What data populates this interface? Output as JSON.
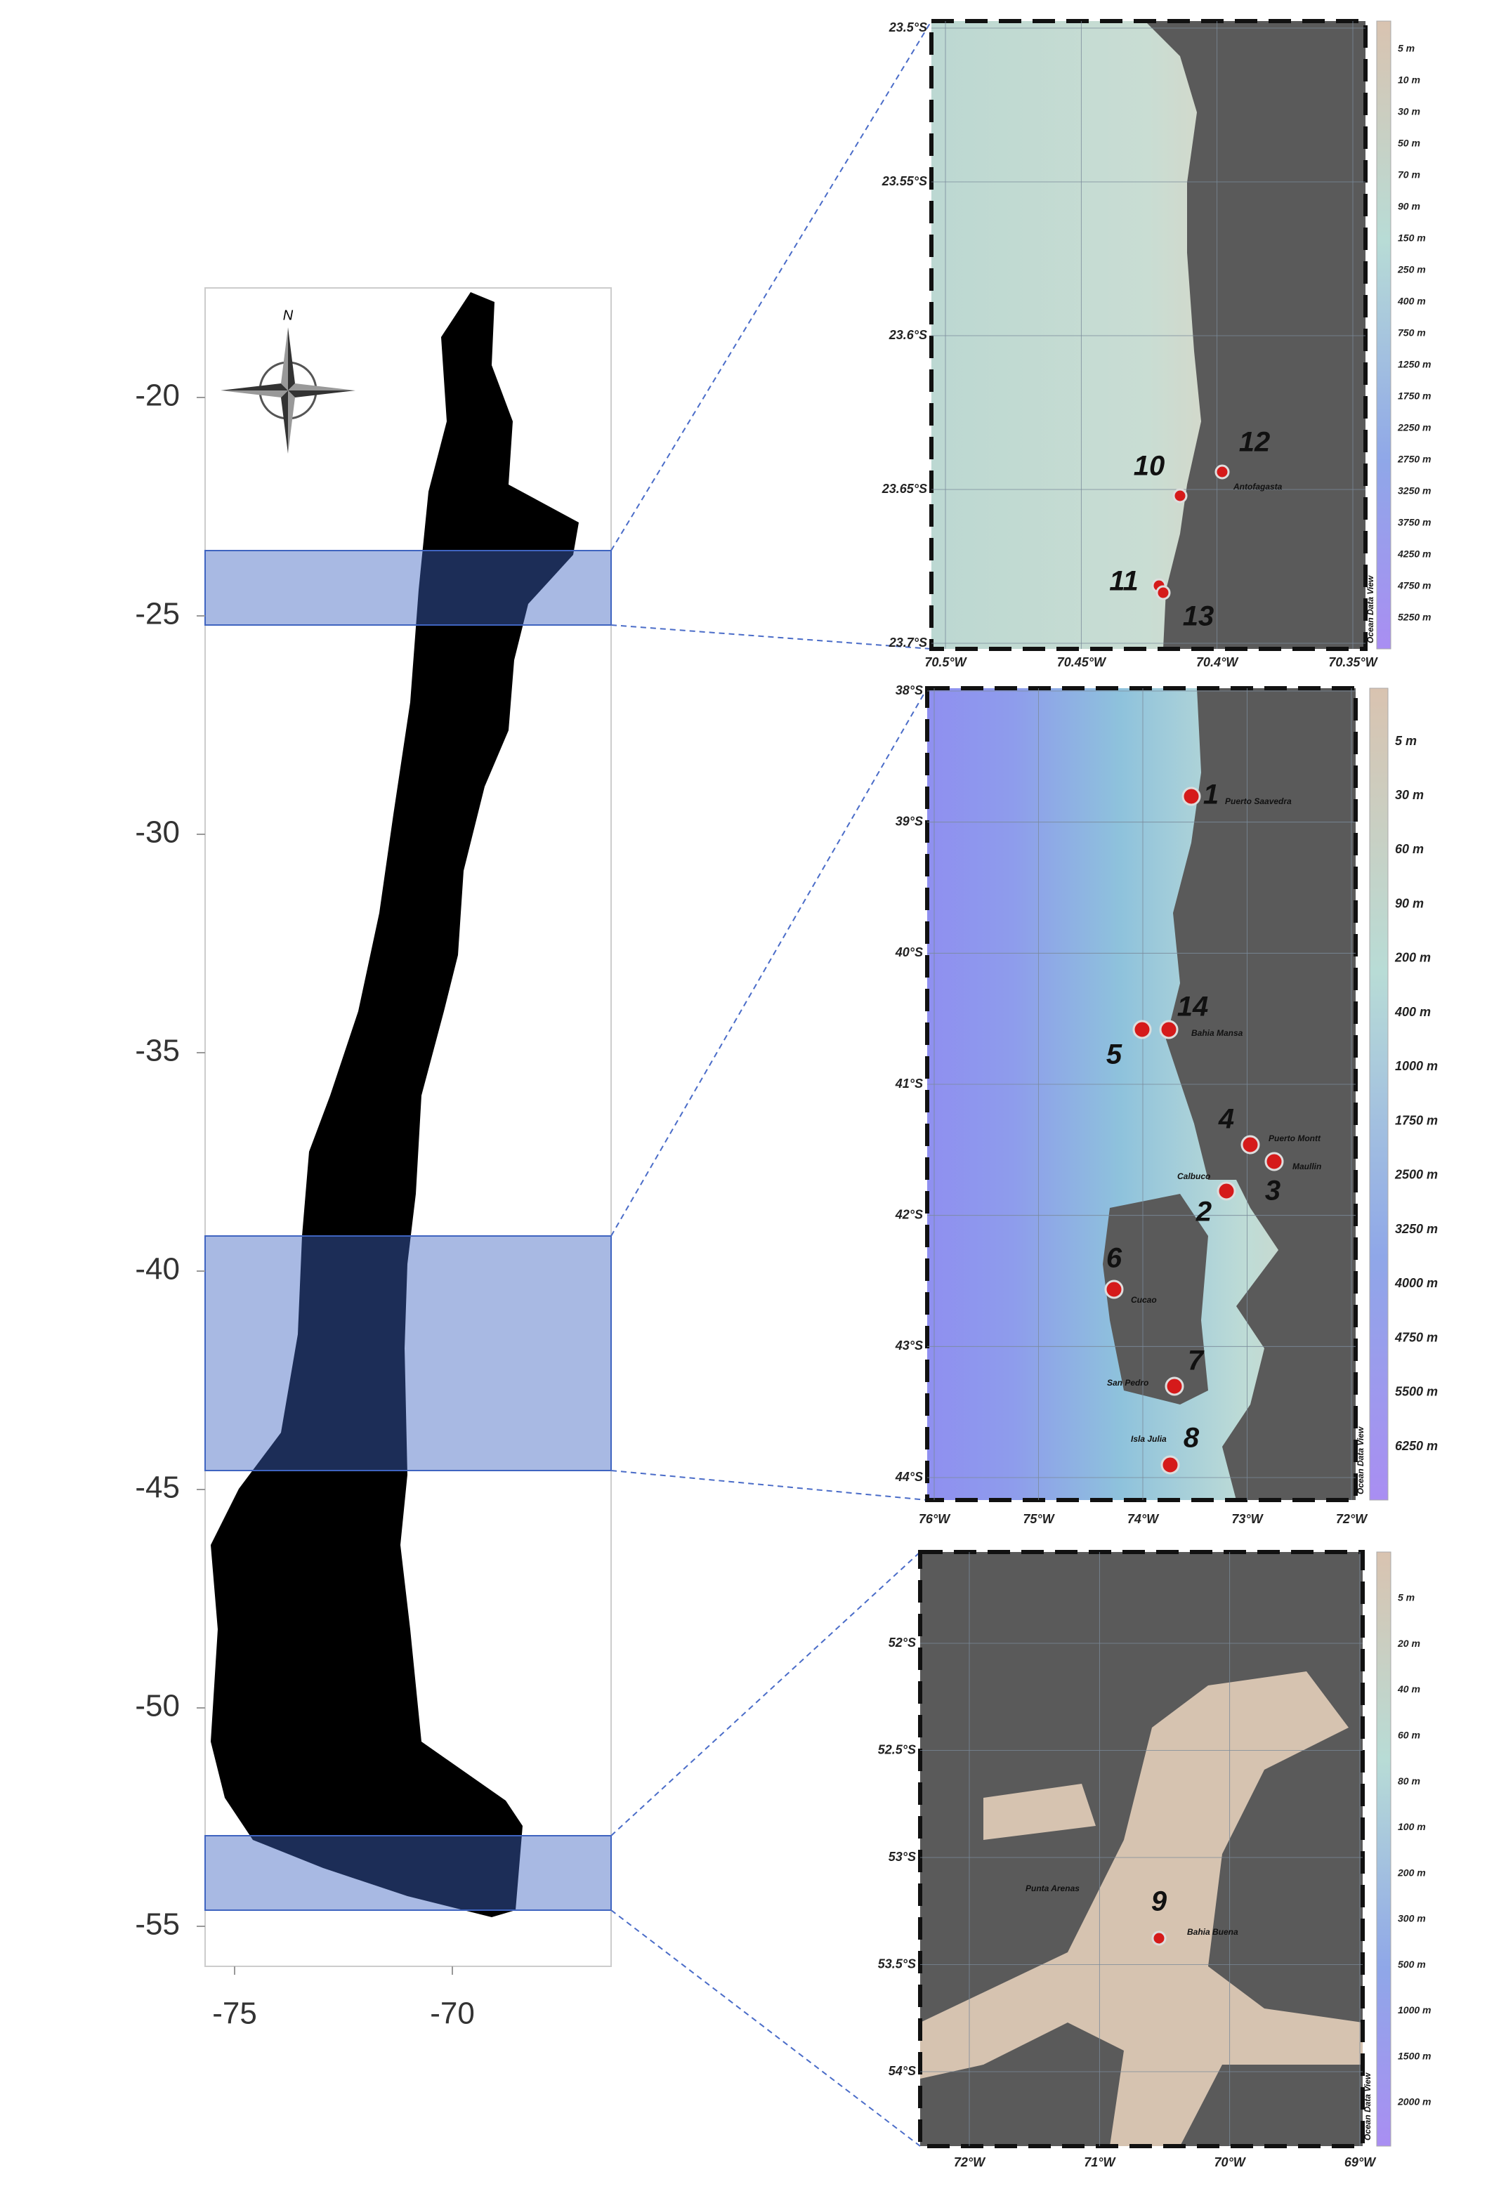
{
  "main_map": {
    "y_ticks": [
      "-20",
      "-25",
      "-30",
      "-35",
      "-40",
      "-45",
      "-50",
      "-55"
    ],
    "x_ticks": [
      "-75",
      "-70"
    ],
    "compass": "N"
  },
  "insets": [
    {
      "lat_labels": [
        "23.5°S",
        "23.55°S",
        "23.6°S",
        "23.65°S",
        "23.7°S"
      ],
      "lon_labels": [
        "70.5°W",
        "70.45°W",
        "70.4°W",
        "70.35°W"
      ],
      "depth_scale": [
        "5 m",
        "10 m",
        "30 m",
        "50 m",
        "70 m",
        "90 m",
        "150 m",
        "250 m",
        "400 m",
        "750 m",
        "1250 m",
        "1750 m",
        "2250 m",
        "2750 m",
        "3250 m",
        "3750 m",
        "4250 m",
        "4750 m",
        "5250 m"
      ],
      "credit": "Ocean Data View",
      "sites": [
        "10",
        "12",
        "11",
        "13"
      ],
      "places": [
        "Antofagasta"
      ]
    },
    {
      "lat_labels": [
        "38°S",
        "39°S",
        "40°S",
        "41°S",
        "42°S",
        "43°S",
        "44°S"
      ],
      "lon_labels": [
        "76°W",
        "75°W",
        "74°W",
        "73°W",
        "72°W"
      ],
      "depth_scale": [
        "5 m",
        "30 m",
        "60 m",
        "90 m",
        "200 m",
        "400 m",
        "1000 m",
        "1750 m",
        "2500 m",
        "3250 m",
        "4000 m",
        "4750 m",
        "5500 m",
        "6250 m"
      ],
      "credit": "Ocean Data View",
      "sites": [
        "1",
        "14",
        "5",
        "4",
        "3",
        "2",
        "6",
        "7",
        "8"
      ],
      "places": [
        "Puerto Saavedra",
        "Bahia Mansa",
        "Puerto Montt",
        "Maullin",
        "Calbuco",
        "Cucao",
        "San Pedro",
        "Isla Julia"
      ]
    },
    {
      "lat_labels": [
        "52°S",
        "52.5°S",
        "53°S",
        "53.5°S",
        "54°S"
      ],
      "lon_labels": [
        "72°W",
        "71°W",
        "70°W",
        "69°W"
      ],
      "depth_scale": [
        "5 m",
        "20 m",
        "40 m",
        "60 m",
        "80 m",
        "100 m",
        "200 m",
        "300 m",
        "500 m",
        "1000 m",
        "1500 m",
        "2000 m"
      ],
      "credit": "Ocean Data View",
      "sites": [
        "9"
      ],
      "places": [
        "Punta Arenas",
        "Bahia Buena"
      ]
    }
  ]
}
